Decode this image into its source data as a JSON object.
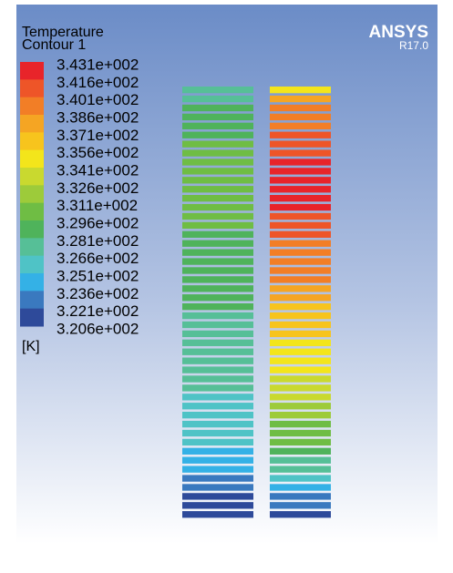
{
  "legend": {
    "title": "Temperature",
    "subtitle": "Contour 1",
    "labels": [
      "3.431e+002",
      "3.416e+002",
      "3.401e+002",
      "3.386e+002",
      "3.371e+002",
      "3.356e+002",
      "3.341e+002",
      "3.326e+002",
      "3.311e+002",
      "3.296e+002",
      "3.281e+002",
      "3.266e+002",
      "3.251e+002",
      "3.236e+002",
      "3.221e+002",
      "3.206e+002"
    ],
    "unit": "[K]"
  },
  "brand": {
    "name": "ANSYS",
    "version": "R17.0"
  }
}
